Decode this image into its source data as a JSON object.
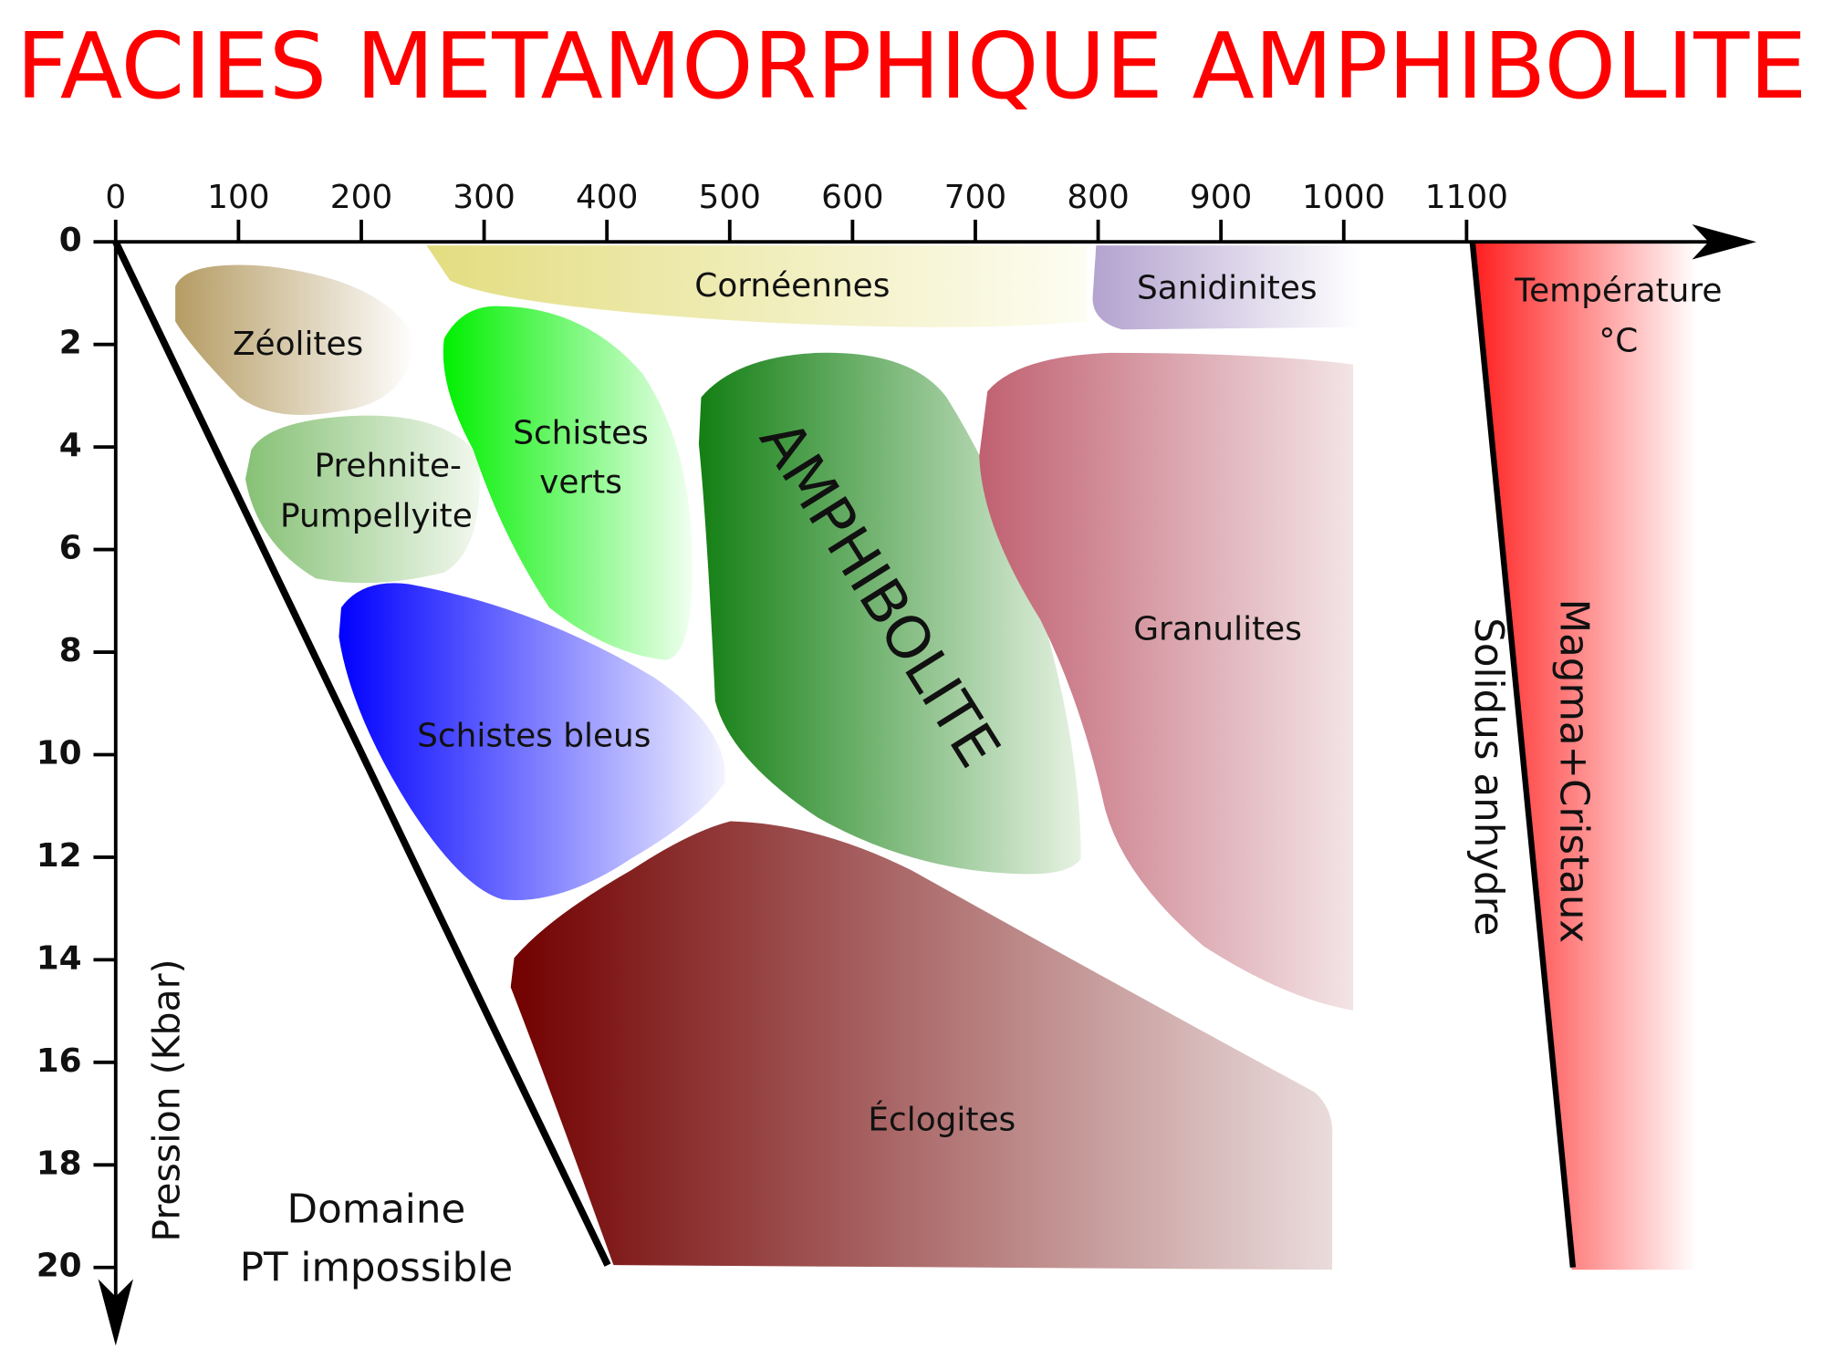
{
  "title": "FACIES METAMORPHIQUE AMPHIBOLITE",
  "x_axis": {
    "ticks": [
      0,
      100,
      200,
      300,
      400,
      500,
      600,
      700,
      800,
      900,
      1000,
      1100
    ],
    "label_lines": [
      "Température",
      "°C"
    ]
  },
  "y_axis": {
    "ticks": [
      0,
      2,
      4,
      6,
      8,
      10,
      12,
      14,
      16,
      18,
      20
    ],
    "label": "Pression (Kbar)"
  },
  "regions": {
    "zeolites": "Zéolites",
    "prehnite_pumpellyite": [
      "Prehnite-",
      "Pumpellyite"
    ],
    "corneennes": "Cornéennes",
    "sanidinites": "Sanidinites",
    "schistes_verts": [
      "Schistes",
      "verts"
    ],
    "schistes_bleus": "Schistes bleus",
    "amphibolite": "AMPHIBOLITE",
    "granulites": "Granulites",
    "eclogites": "Éclogites"
  },
  "annotations": {
    "magma": "Magma+Cristaux",
    "solidus": "Solidus anhydre",
    "impossible": [
      "Domaine",
      "PT impossible"
    ]
  }
}
